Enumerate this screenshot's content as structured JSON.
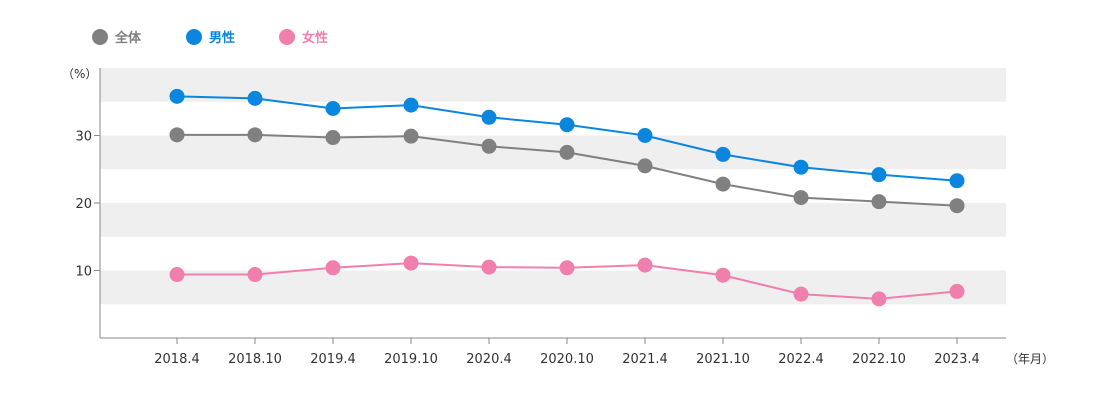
{
  "chart_data": {
    "type": "line",
    "title": "",
    "ylabel": "（%）",
    "xlabel": "（年月）",
    "categories": [
      "2018.4",
      "2018.10",
      "2019.4",
      "2019.10",
      "2020.4",
      "2020.10",
      "2021.4",
      "2021.10",
      "2022.4",
      "2022.10",
      "2023.4"
    ],
    "ylim": [
      0,
      40
    ],
    "yticks": [
      10,
      20,
      30
    ],
    "grid": "alternating horizontal bands",
    "legend_position": "top-left",
    "series": [
      {
        "name": "全体",
        "color": "#808080",
        "values": [
          30.1,
          30.1,
          29.7,
          29.9,
          28.4,
          27.5,
          25.5,
          22.8,
          20.8,
          20.2,
          19.6
        ]
      },
      {
        "name": "男性",
        "color": "#0a86df",
        "values": [
          35.8,
          35.5,
          34.0,
          34.5,
          32.7,
          31.6,
          30.0,
          27.2,
          25.3,
          24.2,
          23.3
        ]
      },
      {
        "name": "女性",
        "color": "#f07fae",
        "values": [
          9.4,
          9.4,
          10.4,
          11.1,
          10.5,
          10.4,
          10.8,
          9.3,
          6.5,
          5.8,
          6.9
        ]
      }
    ]
  }
}
